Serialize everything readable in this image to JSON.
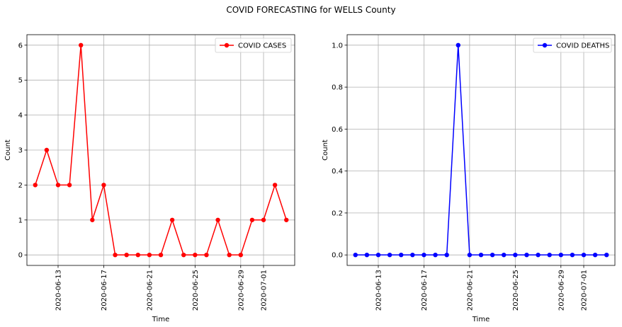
{
  "figure": {
    "title": "COVID FORECASTING for WELLS County"
  },
  "chart_data": [
    {
      "type": "line",
      "title": "",
      "xlabel": "Time",
      "ylabel": "Count",
      "x": [
        "2020-06-11",
        "2020-06-12",
        "2020-06-13",
        "2020-06-14",
        "2020-06-15",
        "2020-06-16",
        "2020-06-17",
        "2020-06-18",
        "2020-06-19",
        "2020-06-20",
        "2020-06-21",
        "2020-06-22",
        "2020-06-23",
        "2020-06-24",
        "2020-06-25",
        "2020-06-26",
        "2020-06-27",
        "2020-06-28",
        "2020-06-29",
        "2020-06-30",
        "2020-07-01",
        "2020-07-02",
        "2020-07-03"
      ],
      "series": [
        {
          "name": "COVID CASES",
          "color": "#ff0000",
          "marker": "circle",
          "values": [
            2,
            3,
            2,
            2,
            6,
            1,
            2,
            0,
            0,
            0,
            0,
            0,
            1,
            0,
            0,
            0,
            1,
            0,
            0,
            1,
            1,
            2,
            1
          ]
        }
      ],
      "xticks": [
        "2020-06-13",
        "2020-06-17",
        "2020-06-21",
        "2020-06-25",
        "2020-06-29",
        "2020-07-01"
      ],
      "yticks": [
        0,
        1,
        2,
        3,
        4,
        5,
        6
      ],
      "ytick_labels": [
        "0",
        "1",
        "2",
        "3",
        "4",
        "5",
        "6"
      ],
      "xlim": [
        "2020-06-10.27",
        "2020-07-03.73"
      ],
      "ylim": [
        -0.3,
        6.3
      ],
      "grid": true,
      "legend": "top-right"
    },
    {
      "type": "line",
      "title": "",
      "xlabel": "Time",
      "ylabel": "Count",
      "x": [
        "2020-06-11",
        "2020-06-12",
        "2020-06-13",
        "2020-06-14",
        "2020-06-15",
        "2020-06-16",
        "2020-06-17",
        "2020-06-18",
        "2020-06-19",
        "2020-06-20",
        "2020-06-21",
        "2020-06-22",
        "2020-06-23",
        "2020-06-24",
        "2020-06-25",
        "2020-06-26",
        "2020-06-27",
        "2020-06-28",
        "2020-06-29",
        "2020-06-30",
        "2020-07-01",
        "2020-07-02",
        "2020-07-03"
      ],
      "series": [
        {
          "name": "COVID DEATHS",
          "color": "#0000ff",
          "marker": "circle",
          "values": [
            0,
            0,
            0,
            0,
            0,
            0,
            0,
            0,
            0,
            1,
            0,
            0,
            0,
            0,
            0,
            0,
            0,
            0,
            0,
            0,
            0,
            0,
            0
          ]
        }
      ],
      "xticks": [
        "2020-06-13",
        "2020-06-17",
        "2020-06-21",
        "2020-06-25",
        "2020-06-29",
        "2020-07-01"
      ],
      "yticks": [
        0,
        0.2,
        0.4,
        0.6,
        0.8,
        1.0
      ],
      "ytick_labels": [
        "0.0",
        "0.2",
        "0.4",
        "0.6",
        "0.8",
        "1.0"
      ],
      "xlim": [
        "2020-06-10.27",
        "2020-07-03.73"
      ],
      "ylim": [
        -0.05,
        1.05
      ],
      "grid": true,
      "legend": "top-right"
    }
  ]
}
